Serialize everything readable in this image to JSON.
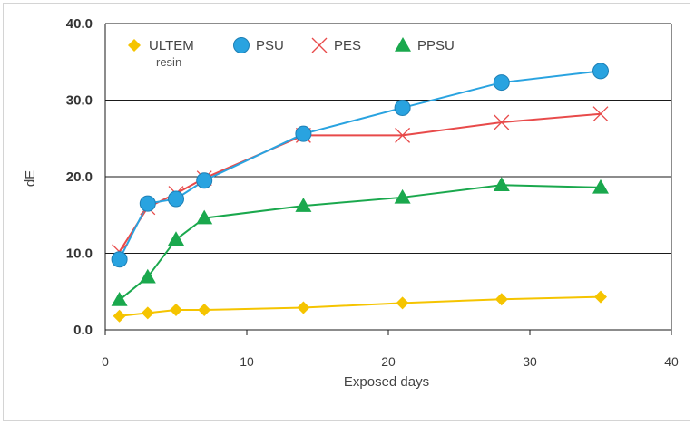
{
  "chart_data": {
    "type": "line",
    "xlabel": "Exposed days",
    "ylabel": "dE",
    "xlim": [
      0,
      40
    ],
    "ylim": [
      0,
      40
    ],
    "xticks": [
      0,
      10,
      20,
      30,
      40
    ],
    "yticks": [
      "0.0",
      "10.0",
      "20.0",
      "30.0",
      "40.0"
    ],
    "grid": "horizontal",
    "legend": "top-left",
    "series": [
      {
        "name": "ULTEM",
        "subname": "resin",
        "color": "#f5c400",
        "marker": "diamond",
        "x": [
          1,
          3,
          5,
          7,
          14,
          21,
          28,
          35
        ],
        "y": [
          1.8,
          2.2,
          2.6,
          2.6,
          2.9,
          3.5,
          4.0,
          4.3
        ]
      },
      {
        "name": "PSU",
        "color": "#29a3e0",
        "marker": "circle",
        "x": [
          1,
          3,
          5,
          7,
          14,
          21,
          28,
          35
        ],
        "y": [
          9.2,
          16.5,
          17.1,
          19.5,
          25.6,
          29.0,
          32.3,
          33.8
        ]
      },
      {
        "name": "PES",
        "color": "#e84a4a",
        "marker": "x",
        "x": [
          1,
          3,
          5,
          7,
          14,
          21,
          28,
          35
        ],
        "y": [
          10.2,
          16.0,
          17.8,
          19.8,
          25.4,
          25.4,
          27.1,
          28.2
        ]
      },
      {
        "name": "PPSU",
        "color": "#1aa84d",
        "marker": "triangle",
        "x": [
          1,
          3,
          5,
          7,
          14,
          21,
          28,
          35
        ],
        "y": [
          3.9,
          6.9,
          11.8,
          14.6,
          16.2,
          17.3,
          18.9,
          18.6
        ]
      }
    ]
  }
}
